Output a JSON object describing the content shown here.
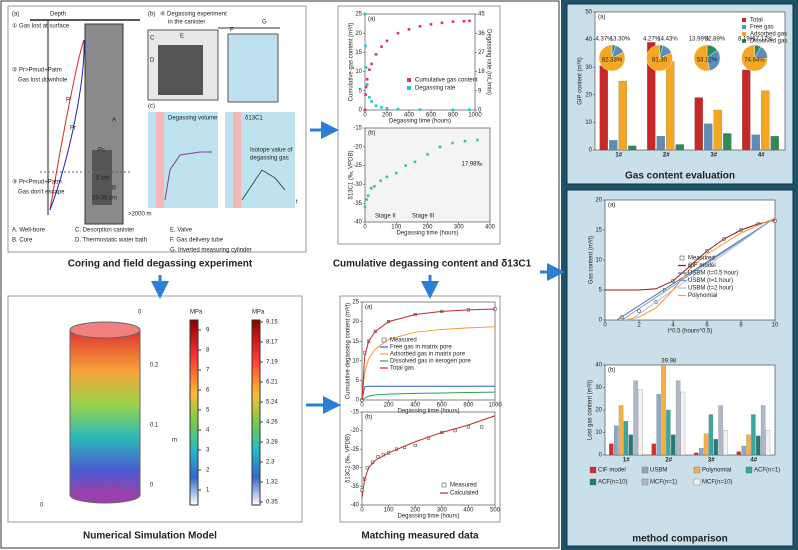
{
  "captions": {
    "coring": "Coring and field degassing experiment",
    "degassing": "Cumulative degassing content and δ13C1",
    "simulation": "Numerical Simulation Model",
    "matching": "Matching measured data",
    "gas_content": "Gas content evaluation",
    "method": "method comparison"
  },
  "coring": {
    "labels": [
      "(a)",
      "Depth",
      "① Gas lost at surface",
      "② Pr>Pmud+Patm",
      "Gas lost downhole",
      "③ Pr<Pmud+Patm",
      "Gas don't escape",
      "Pr",
      "Pc",
      "P",
      "5 cm",
      "20-35 cm",
      ">2000 m",
      "A",
      "B",
      "A. Well-bore",
      "B. Core",
      "C. Desorption canister",
      "D. Thermostatic water bath",
      "E. Valve",
      "F. Gas delivery tube",
      "G. Inverted measuring cylinder",
      "(b)",
      "④ Degassing experiment",
      "in the canister",
      "C",
      "D",
      "E",
      "F",
      "G",
      "(c)",
      "Degassing volume",
      "δ13C1",
      "Isotope value of",
      "degassing gas",
      "t"
    ]
  },
  "degassing": {
    "a": {
      "label": "(a)",
      "xlabel": "Degassing time (hours)",
      "ylabel": "Cumulative gas content (m³/t)",
      "y2label": "Degassing rate (mL/min)",
      "xlim": [
        0,
        1000
      ],
      "xticks": [
        0,
        200,
        400,
        600,
        800,
        1000
      ],
      "ylim": [
        0,
        25
      ],
      "yticks": [
        0,
        5,
        10,
        15,
        20,
        25
      ],
      "y2lim": [
        0,
        45
      ],
      "y2ticks": [
        0,
        9,
        18,
        27,
        36,
        45
      ],
      "series": [
        {
          "name": "Cumulative gas content",
          "color": "#d6337a",
          "x": [
            0,
            5,
            10,
            20,
            40,
            60,
            100,
            150,
            200,
            300,
            400,
            500,
            600,
            700,
            800,
            900,
            950
          ],
          "values": [
            0,
            4,
            6,
            8,
            10.5,
            12,
            14.5,
            16.5,
            18,
            20,
            21,
            21.8,
            22.3,
            22.7,
            23,
            23.1,
            23.2
          ]
        },
        {
          "name": "Degassing rate",
          "color": "#22c4c9",
          "axis": "y2",
          "x": [
            0,
            5,
            10,
            20,
            40,
            60,
            100,
            150,
            200,
            300,
            500,
            800,
            950
          ],
          "values": [
            45,
            30,
            20,
            12,
            6,
            4,
            2,
            1.2,
            0.8,
            0.4,
            0.2,
            0.1,
            0.1
          ]
        }
      ]
    },
    "b": {
      "label": "(b)",
      "xlabel": "Degassing time (hours)",
      "ylabel": "δ13C1 (‰, VPDB)",
      "xlim": [
        0,
        400
      ],
      "xticks": [
        0,
        100,
        200,
        300,
        400
      ],
      "ylim": [
        -40,
        -15
      ],
      "yticks": [
        -40,
        -35,
        -30,
        -25,
        -20,
        -15
      ],
      "stages": [
        "Stage II",
        "Stage III"
      ],
      "note": "17.98‰",
      "series": [
        {
          "name": "δ13C1",
          "color": "#3bbfae",
          "x": [
            0,
            5,
            10,
            20,
            30,
            50,
            70,
            100,
            130,
            160,
            200,
            240,
            280,
            320,
            360
          ],
          "values": [
            -36,
            -34,
            -33,
            -31,
            -30.5,
            -29,
            -28,
            -27,
            -25,
            -24,
            -22,
            -20,
            -19,
            -18.5,
            -18.2
          ]
        }
      ]
    }
  },
  "simulation": {
    "unit1": "MPa",
    "unit2": "MPa",
    "bar1": [
      9,
      8,
      7,
      6,
      5,
      4,
      3,
      2,
      1
    ],
    "bar2": [
      9.15,
      8.17,
      7.19,
      6.21,
      5.24,
      4.26,
      3.28,
      2.3,
      1.32,
      0.35
    ],
    "axis_labels": [
      "0",
      "0.2",
      "0.1",
      "m",
      "0",
      "0"
    ]
  },
  "matching": {
    "a": {
      "label": "(a)",
      "xlabel": "Degassing time (hours)",
      "ylabel": "Cumulative degassing content (m³/t)",
      "xlim": [
        0,
        1000
      ],
      "xticks": [
        0,
        200,
        400,
        600,
        800,
        1000
      ],
      "ylim": [
        0,
        25
      ],
      "yticks": [
        0,
        5,
        10,
        15,
        20,
        25
      ],
      "x": [
        0,
        20,
        50,
        100,
        200,
        400,
        600,
        800,
        1000
      ],
      "series": [
        {
          "name": "Measured",
          "color": "#333333",
          "values": [
            0,
            12,
            15,
            17.5,
            20,
            21.8,
            22.6,
            23,
            23.2
          ]
        },
        {
          "name": "Free gas in matrix pore",
          "color": "#2b5fb8",
          "values": [
            0,
            3.3,
            3.5,
            3.5,
            3.5,
            3.5,
            3.5,
            3.5,
            3.5
          ]
        },
        {
          "name": "Adsorbed gas in matrix pore",
          "color": "#f29d38",
          "values": [
            0,
            7,
            10.5,
            13,
            15.5,
            17.3,
            18,
            18.4,
            18.7
          ]
        },
        {
          "name": "Dissolved gas in kerogen pore",
          "color": "#2e9e5b",
          "values": [
            0,
            0.5,
            1,
            1.3,
            1.5,
            1.7,
            1.8,
            1.9,
            2
          ]
        },
        {
          "name": "Total gas",
          "color": "#c62828",
          "values": [
            0,
            11,
            15,
            17.5,
            20,
            21.8,
            22.6,
            23,
            23.2
          ]
        }
      ]
    },
    "b": {
      "label": "(b)",
      "xlabel": "Degassing time (hours)",
      "ylabel": "δ13C1 (‰, VPDB)",
      "xlim": [
        0,
        500
      ],
      "xticks": [
        0,
        100,
        200,
        300,
        400,
        500
      ],
      "ylim": [
        -40,
        -15
      ],
      "yticks": [
        -40,
        -35,
        -30,
        -25,
        -20,
        -15
      ],
      "series": [
        {
          "name": "Measured",
          "color": "#333333",
          "x": [
            0,
            10,
            20,
            40,
            60,
            80,
            100,
            130,
            160,
            200,
            250,
            300,
            350,
            400,
            450
          ],
          "values": [
            -36,
            -33,
            -30,
            -28.5,
            -27,
            -26.5,
            -26,
            -25,
            -24.5,
            -24,
            -22,
            -20.5,
            -20,
            -19,
            -19
          ]
        },
        {
          "name": "Calculated",
          "color": "#c62828",
          "x": [
            0,
            10,
            25,
            50,
            100,
            150,
            200,
            300,
            400,
            500
          ],
          "values": [
            -38,
            -33,
            -30,
            -28,
            -26,
            -24.5,
            -23,
            -20.5,
            -18.5,
            -16
          ]
        }
      ]
    }
  },
  "gas_content": {
    "label": "(a)",
    "ylabel": "GIP content (m³/t)",
    "categories": [
      "1#",
      "2#",
      "3#",
      "4#"
    ],
    "ylim": [
      0,
      50
    ],
    "yticks": [
      0,
      10,
      20,
      30,
      40,
      50
    ],
    "series": [
      {
        "name": "Total",
        "color": "#c62828",
        "values": [
          30.5,
          39,
          19,
          29
        ]
      },
      {
        "name": "Free gas",
        "color": "#5b8db8",
        "values": [
          3.5,
          5,
          9.5,
          5.5
        ]
      },
      {
        "name": "Adsorbed gas",
        "color": "#f5a623",
        "values": [
          25,
          32,
          14.5,
          21.5
        ]
      },
      {
        "name": "Dissolved gas",
        "color": "#2e8b57",
        "values": [
          1.5,
          2,
          6,
          5
        ]
      }
    ],
    "pies": [
      {
        "values": [
          4.37,
          13.3,
          82.33
        ],
        "value_labels": [
          "4.37%",
          "13.30%",
          "82.33%"
        ]
      },
      {
        "values": [
          4.27,
          14.43,
          81.3
        ],
        "value_labels": [
          "4.27%",
          "14.43%",
          "81.30"
        ]
      },
      {
        "values": [
          13.99,
          32.89,
          53.12
        ],
        "value_labels": [
          "13.99%",
          "32.89%",
          "53.12%"
        ]
      },
      {
        "values": [
          8.19,
          17.17,
          74.64
        ],
        "value_labels": [
          "8.19%",
          "17.17%",
          "74.64%"
        ]
      }
    ]
  },
  "method": {
    "fit": {
      "label": "(a)",
      "xlabel": "t^0.5 (hours^0.5)",
      "ylabel": "Gas content (m³/t)",
      "xlim": [
        0,
        10
      ],
      "xticks": [
        0,
        2,
        4,
        6,
        8,
        10
      ],
      "ylim": [
        0,
        20
      ],
      "yticks": [
        0,
        5,
        10,
        15,
        20
      ],
      "series": [
        {
          "name": "Measured",
          "color": "#333333",
          "x": [
            1,
            2,
            3,
            3.5,
            4,
            5,
            6,
            7,
            8,
            9,
            10
          ],
          "values": [
            0.5,
            1.5,
            3,
            5,
            6.5,
            9,
            11.5,
            13.5,
            15,
            16,
            16.5
          ]
        },
        {
          "name": "CIF model",
          "color": "#8b1a1a",
          "x": [
            0,
            1,
            2,
            3,
            4,
            5,
            6,
            7,
            8,
            9,
            10
          ],
          "values": [
            5,
            5,
            5,
            5.2,
            6.5,
            9,
            11.5,
            13.5,
            15,
            16,
            16.6
          ]
        },
        {
          "name": "USBM (t=0.5 hour)",
          "color": "#4a6fa5",
          "x": [
            0.7,
            10
          ],
          "values": [
            0,
            17
          ]
        },
        {
          "name": "USBM (t=1 hour)",
          "color": "#7d97c2",
          "x": [
            1,
            10
          ],
          "values": [
            0,
            17
          ]
        },
        {
          "name": "USBM (t=2 hour)",
          "color": "#a9bcd9",
          "x": [
            1.5,
            10
          ],
          "values": [
            0,
            17
          ]
        },
        {
          "name": "Polynomial",
          "color": "#f29d38",
          "x": [
            1.2,
            2,
            3,
            4,
            5,
            6,
            8,
            10
          ],
          "values": [
            0,
            0.5,
            2,
            5,
            8.5,
            11,
            14.5,
            17
          ]
        }
      ]
    },
    "bars": {
      "label": "(b)",
      "ylabel": "Lost gas content (m³/t)",
      "categories": [
        "1#",
        "2#",
        "3#",
        "4#"
      ],
      "ylim": [
        0,
        40
      ],
      "yticks": [
        0,
        10,
        20,
        30,
        40
      ],
      "note": "39.98",
      "series": [
        {
          "name": "CIF model",
          "color": "#d32f2f",
          "values": [
            5,
            5,
            1,
            1.5
          ]
        },
        {
          "name": "USBM",
          "color": "#8fa8c8",
          "values": [
            13,
            27,
            3,
            4
          ]
        },
        {
          "name": "Polynomial",
          "color": "#f6b042",
          "values": [
            22,
            39.98,
            9.5,
            9
          ]
        },
        {
          "name": "ACF(n=1)",
          "color": "#3aa89a",
          "values": [
            15,
            20,
            18,
            18
          ]
        },
        {
          "name": "ACF(n=10)",
          "color": "#1f7a7a",
          "values": [
            9,
            9,
            7,
            8.5
          ]
        },
        {
          "name": "MCF(n=1)",
          "color": "#b0b8c8",
          "values": [
            33,
            33,
            22,
            22
          ]
        },
        {
          "name": "MCF(n=10)",
          "color": "#f2f2f2",
          "values": [
            29,
            28,
            11,
            11
          ]
        }
      ]
    }
  }
}
